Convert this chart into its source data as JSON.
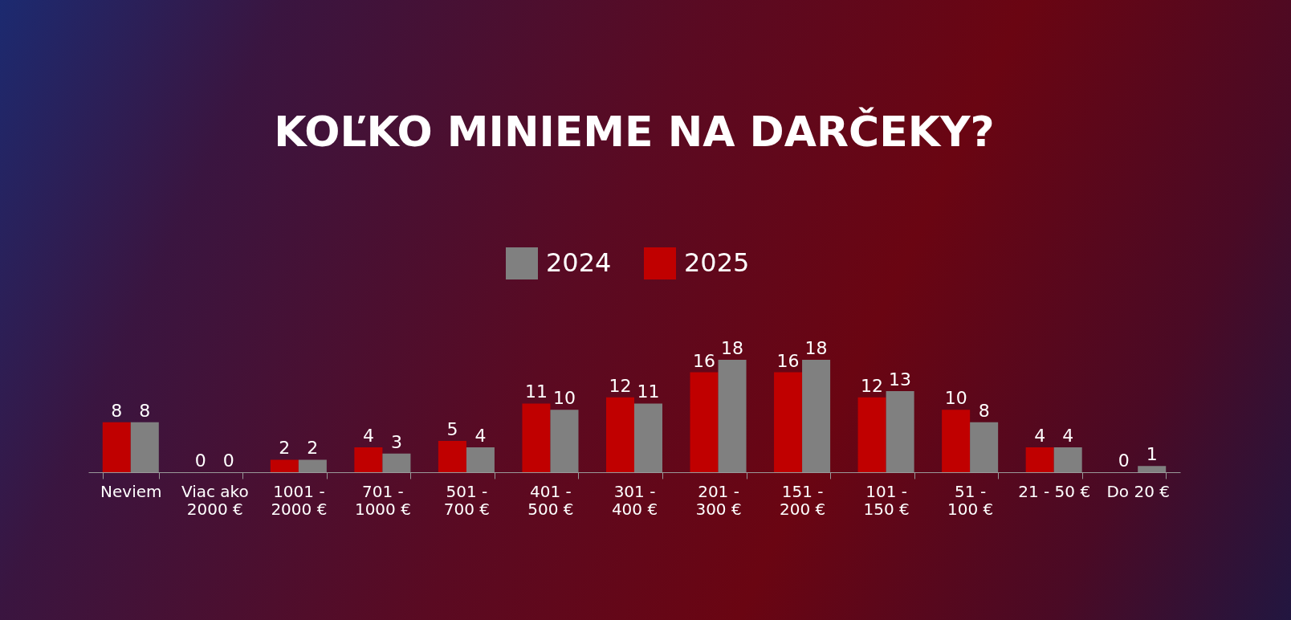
{
  "chart_data": {
    "type": "bar",
    "title": "KOĽKO MINIEME NA DARČEKY?",
    "categories": [
      "Neviem",
      "Viac ako 2000 €",
      "1001 - 2000 €",
      "701 - 1000 €",
      "501 - 700 €",
      "401 - 500 €",
      "301 - 400 €",
      "201 - 300 €",
      "151 - 200 €",
      "101 - 150 €",
      "51 - 100 €",
      "21 - 50 €",
      "Do 20 €"
    ],
    "series": [
      {
        "name": "2025",
        "color": "#c00000",
        "values": [
          8,
          0,
          2,
          4,
          5,
          11,
          12,
          16,
          16,
          12,
          10,
          4,
          0
        ]
      },
      {
        "name": "2024",
        "color": "#808080",
        "values": [
          8,
          0,
          2,
          3,
          4,
          10,
          11,
          18,
          18,
          13,
          8,
          4,
          1
        ]
      }
    ],
    "data_labels": true,
    "legend": "top"
  }
}
